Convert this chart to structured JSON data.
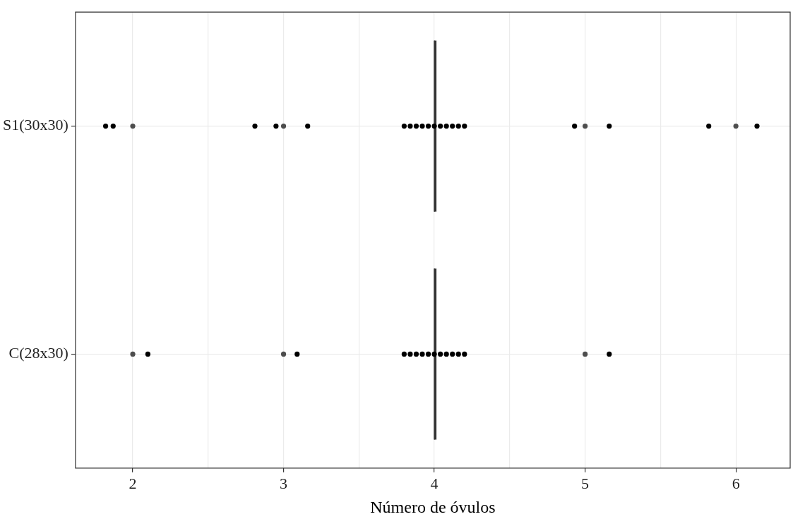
{
  "chart_data": {
    "type": "box",
    "orientation": "horizontal",
    "xlabel": "Número de óvulos",
    "xlim": [
      1.62,
      6.36
    ],
    "xticks": [
      2,
      {
        "value": 2.5,
        "label": null
      },
      3,
      {
        "value": 3.5,
        "label": null
      },
      4,
      {
        "value": 4.5,
        "label": null
      },
      5,
      {
        "value": 5.5,
        "label": null
      },
      6
    ],
    "categories": [
      "S1(30x30)",
      "C(28x30)"
    ],
    "boxes": [
      {
        "low": 4,
        "q1": 4,
        "median": 4,
        "q3": 4,
        "high": 4,
        "outliers": [
          2,
          3,
          5,
          6
        ]
      },
      {
        "low": 4,
        "q1": 4,
        "median": 4,
        "q3": 4,
        "high": 4,
        "outliers": [
          2,
          3,
          5
        ]
      }
    ],
    "grid": true,
    "marker": "circle",
    "series": [
      {
        "type": "scatter",
        "color": "#000000",
        "x": [
          "S1(30x30)",
          "S1(30x30)",
          "S1(30x30)",
          "S1(30x30)",
          "S1(30x30)",
          "S1(30x30)",
          "S1(30x30)",
          "S1(30x30)",
          "S1(30x30)",
          "S1(30x30)",
          "S1(30x30)",
          "S1(30x30)",
          "S1(30x30)",
          "S1(30x30)",
          "S1(30x30)",
          "S1(30x30)",
          "S1(30x30)",
          "S1(30x30)",
          "S1(30x30)",
          "S1(30x30)"
        ],
        "values": [
          1.82,
          1.87,
          2.81,
          2.95,
          3.16,
          4.93,
          5.16,
          5.82,
          6.14,
          3.8,
          3.84,
          3.88,
          3.92,
          3.96,
          4.0,
          4.04,
          4.08,
          4.12,
          4.16,
          4.2
        ]
      },
      {
        "type": "scatter",
        "color": "#000000",
        "x": [
          "C(28x30)",
          "C(28x30)",
          "C(28x30)",
          "C(28x30)",
          "C(28x30)",
          "C(28x30)",
          "C(28x30)",
          "C(28x30)",
          "C(28x30)",
          "C(28x30)",
          "C(28x30)",
          "C(28x30)",
          "C(28x30)",
          "C(28x30)"
        ],
        "values": [
          2.1,
          3.09,
          5.16,
          3.8,
          3.84,
          3.88,
          3.92,
          3.96,
          4.0,
          4.04,
          4.08,
          4.12,
          4.16,
          4.2
        ]
      }
    ]
  }
}
